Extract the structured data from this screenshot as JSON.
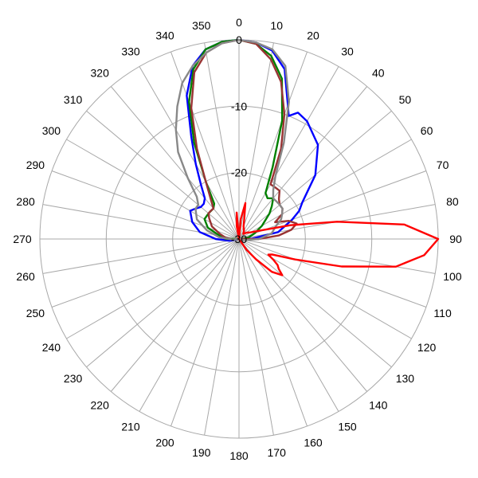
{
  "chart_data": {
    "type": "polar-line",
    "title": "",
    "angular_axis": {
      "unit": "degrees",
      "direction": "clockwise",
      "zero": "top",
      "tick_step": 10,
      "labels": [
        "0",
        "10",
        "20",
        "30",
        "40",
        "50",
        "60",
        "70",
        "80",
        "90",
        "100",
        "110",
        "120",
        "130",
        "140",
        "150",
        "160",
        "170",
        "180",
        "190",
        "200",
        "210",
        "220",
        "230",
        "240",
        "250",
        "260",
        "270",
        "280",
        "290",
        "300",
        "310",
        "320",
        "330",
        "340",
        "350"
      ]
    },
    "radial_axis": {
      "range": [
        -30,
        0
      ],
      "ticks": [
        0,
        -10,
        -20,
        -30
      ],
      "tick_labels": [
        "0",
        "-10",
        "-20",
        "-30"
      ],
      "label_angle": 0
    },
    "grid": true,
    "legend": "none",
    "series": [
      {
        "color": "#0000ff",
        "points": [
          [
            0,
            0
          ],
          [
            5,
            -0.3
          ],
          [
            10,
            -1.2
          ],
          [
            15,
            -3.5
          ],
          [
            20,
            -8.5
          ],
          [
            22,
            -10
          ],
          [
            25,
            -9
          ],
          [
            30,
            -9.5
          ],
          [
            40,
            -11.5
          ],
          [
            50,
            -15
          ],
          [
            60,
            -19
          ],
          [
            65,
            -20
          ],
          [
            70,
            -21.5
          ],
          [
            80,
            -24
          ],
          [
            88,
            -28
          ],
          [
            95,
            -30
          ],
          [
            250,
            -30
          ],
          [
            260,
            -28.5
          ],
          [
            270,
            -26.5
          ],
          [
            280,
            -24
          ],
          [
            290,
            -22.5
          ],
          [
            300,
            -21.5
          ],
          [
            305,
            -22
          ],
          [
            310,
            -22.5
          ],
          [
            315,
            -22.5
          ],
          [
            320,
            -22
          ],
          [
            325,
            -20
          ],
          [
            330,
            -17
          ],
          [
            335,
            -13
          ],
          [
            340,
            -7
          ],
          [
            345,
            -3
          ],
          [
            350,
            -1
          ],
          [
            355,
            -0.2
          ],
          [
            0,
            0
          ]
        ]
      },
      {
        "color": "#008000",
        "points": [
          [
            0,
            0
          ],
          [
            5,
            -0.5
          ],
          [
            10,
            -2
          ],
          [
            15,
            -5
          ],
          [
            20,
            -11
          ],
          [
            25,
            -18
          ],
          [
            30,
            -22
          ],
          [
            35,
            -22.5
          ],
          [
            40,
            -22
          ],
          [
            45,
            -23
          ],
          [
            50,
            -24
          ],
          [
            60,
            -26
          ],
          [
            70,
            -27.5
          ],
          [
            80,
            -28.5
          ],
          [
            90,
            -29.5
          ],
          [
            100,
            -30
          ],
          [
            250,
            -30
          ],
          [
            270,
            -28
          ],
          [
            280,
            -27
          ],
          [
            290,
            -25
          ],
          [
            300,
            -24
          ],
          [
            310,
            -24
          ],
          [
            320,
            -24
          ],
          [
            325,
            -23.5
          ],
          [
            330,
            -20
          ],
          [
            335,
            -14
          ],
          [
            340,
            -8
          ],
          [
            345,
            -3.5
          ],
          [
            350,
            -1
          ],
          [
            355,
            -0.2
          ],
          [
            0,
            0
          ]
        ]
      },
      {
        "color": "#993333",
        "points": [
          [
            0,
            0
          ],
          [
            5,
            -0.5
          ],
          [
            10,
            -2.5
          ],
          [
            15,
            -5.5
          ],
          [
            20,
            -10
          ],
          [
            25,
            -15
          ],
          [
            30,
            -20.5
          ],
          [
            35,
            -20.5
          ],
          [
            40,
            -20.5
          ],
          [
            45,
            -21.5
          ],
          [
            50,
            -22
          ],
          [
            55,
            -22
          ],
          [
            60,
            -22.5
          ],
          [
            65,
            -24
          ],
          [
            70,
            -22
          ],
          [
            75,
            -21
          ],
          [
            80,
            -22
          ],
          [
            85,
            -24
          ],
          [
            90,
            -27
          ],
          [
            100,
            -30
          ],
          [
            255,
            -30
          ],
          [
            265,
            -29
          ],
          [
            275,
            -28
          ],
          [
            285,
            -27
          ],
          [
            295,
            -25.5
          ],
          [
            305,
            -24.5
          ],
          [
            310,
            -24
          ],
          [
            315,
            -24
          ],
          [
            320,
            -24
          ],
          [
            325,
            -22.5
          ],
          [
            330,
            -20
          ],
          [
            335,
            -15
          ],
          [
            340,
            -9
          ],
          [
            345,
            -4
          ],
          [
            350,
            -1.5
          ],
          [
            355,
            -0.4
          ],
          [
            0,
            0
          ]
        ]
      },
      {
        "color": "#888888",
        "points": [
          [
            0,
            0
          ],
          [
            5,
            -0.3
          ],
          [
            10,
            -1
          ],
          [
            15,
            -3
          ],
          [
            20,
            -8
          ],
          [
            25,
            -14
          ],
          [
            30,
            -19
          ],
          [
            35,
            -21
          ],
          [
            40,
            -22
          ],
          [
            45,
            -22
          ],
          [
            50,
            -22
          ],
          [
            55,
            -22
          ],
          [
            60,
            -22.5
          ],
          [
            65,
            -23
          ],
          [
            70,
            -24
          ],
          [
            80,
            -25
          ],
          [
            90,
            -27
          ],
          [
            100,
            -29
          ],
          [
            110,
            -30
          ],
          [
            250,
            -30
          ],
          [
            265,
            -29
          ],
          [
            275,
            -27
          ],
          [
            285,
            -25
          ],
          [
            295,
            -23
          ],
          [
            305,
            -22
          ],
          [
            310,
            -22
          ],
          [
            315,
            -21
          ],
          [
            320,
            -18
          ],
          [
            325,
            -14
          ],
          [
            330,
            -11
          ],
          [
            335,
            -8
          ],
          [
            340,
            -5
          ],
          [
            345,
            -3
          ],
          [
            350,
            -1.5
          ],
          [
            355,
            -0.4
          ],
          [
            0,
            0
          ]
        ]
      },
      {
        "color": "#ff0000",
        "points": [
          [
            0,
            -30
          ],
          [
            5,
            -27
          ],
          [
            10,
            -24.5
          ],
          [
            15,
            -27
          ],
          [
            20,
            -28
          ],
          [
            30,
            -28.5
          ],
          [
            40,
            -29
          ],
          [
            50,
            -28.5
          ],
          [
            60,
            -28
          ],
          [
            70,
            -26
          ],
          [
            75,
            -22
          ],
          [
            80,
            -15
          ],
          [
            85,
            -5
          ],
          [
            90,
            0
          ],
          [
            95,
            -2
          ],
          [
            100,
            -6
          ],
          [
            105,
            -14
          ],
          [
            110,
            -21
          ],
          [
            115,
            -24.5
          ],
          [
            118,
            -25
          ],
          [
            121,
            -24
          ],
          [
            124,
            -23
          ],
          [
            127,
            -22.5
          ],
          [
            130,
            -21.5
          ],
          [
            135,
            -23
          ],
          [
            140,
            -26
          ],
          [
            145,
            -28
          ],
          [
            150,
            -30
          ],
          [
            345,
            -30
          ],
          [
            350,
            -28
          ],
          [
            355,
            -26
          ],
          [
            0,
            -30
          ]
        ]
      }
    ]
  }
}
